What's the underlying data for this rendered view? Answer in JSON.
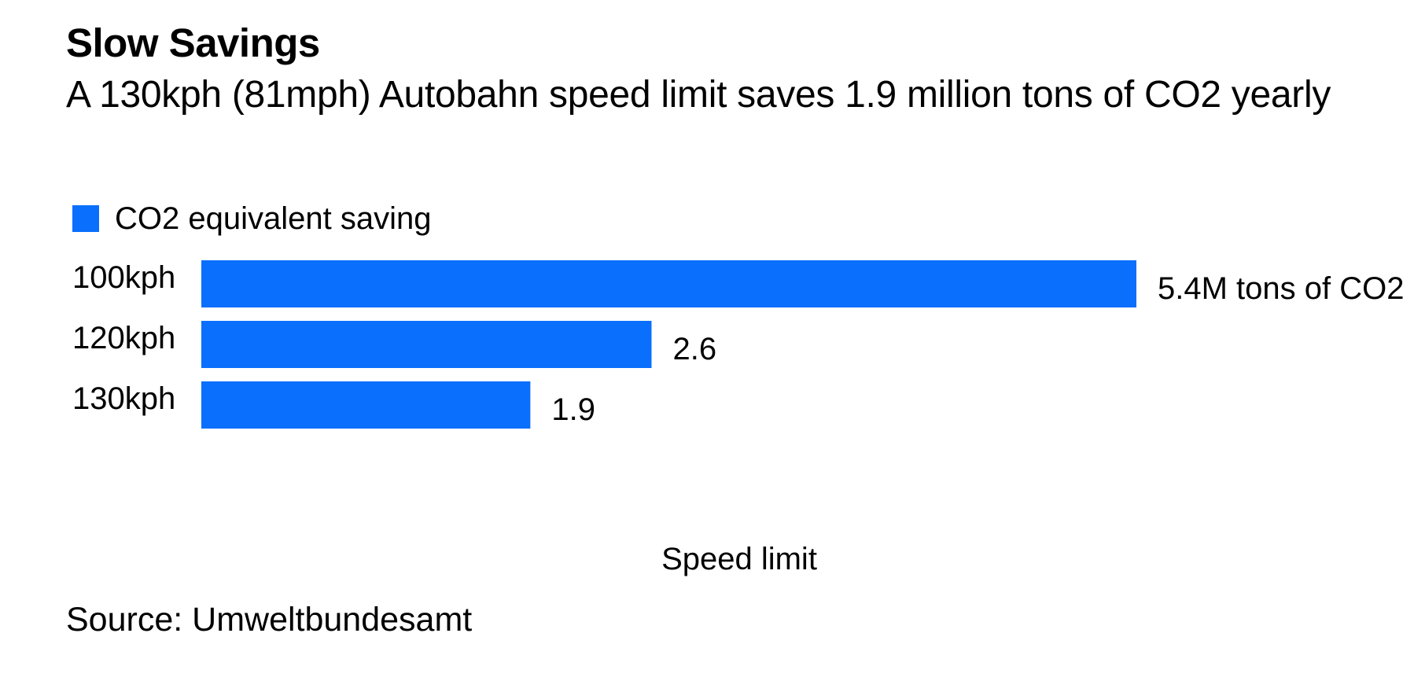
{
  "chart_data": {
    "type": "bar",
    "orientation": "horizontal",
    "title": "Slow Savings",
    "subtitle": "A 130kph (81mph) Autobahn speed limit saves 1.9 million tons of CO2 yearly",
    "categories": [
      "100kph",
      "120kph",
      "130kph"
    ],
    "series": [
      {
        "name": "CO2 equivalent saving",
        "values": [
          5.4,
          2.6,
          1.9
        ],
        "value_labels": [
          "5.4M tons of CO2",
          "2.6",
          "1.9"
        ],
        "color": "#0a6ffd"
      }
    ],
    "xlabel": "Speed limit",
    "ylabel": "",
    "xlim": [
      0,
      5.4
    ],
    "grid": false,
    "legend_position": "top-left"
  },
  "source": "Source: Umweltbundesamt"
}
